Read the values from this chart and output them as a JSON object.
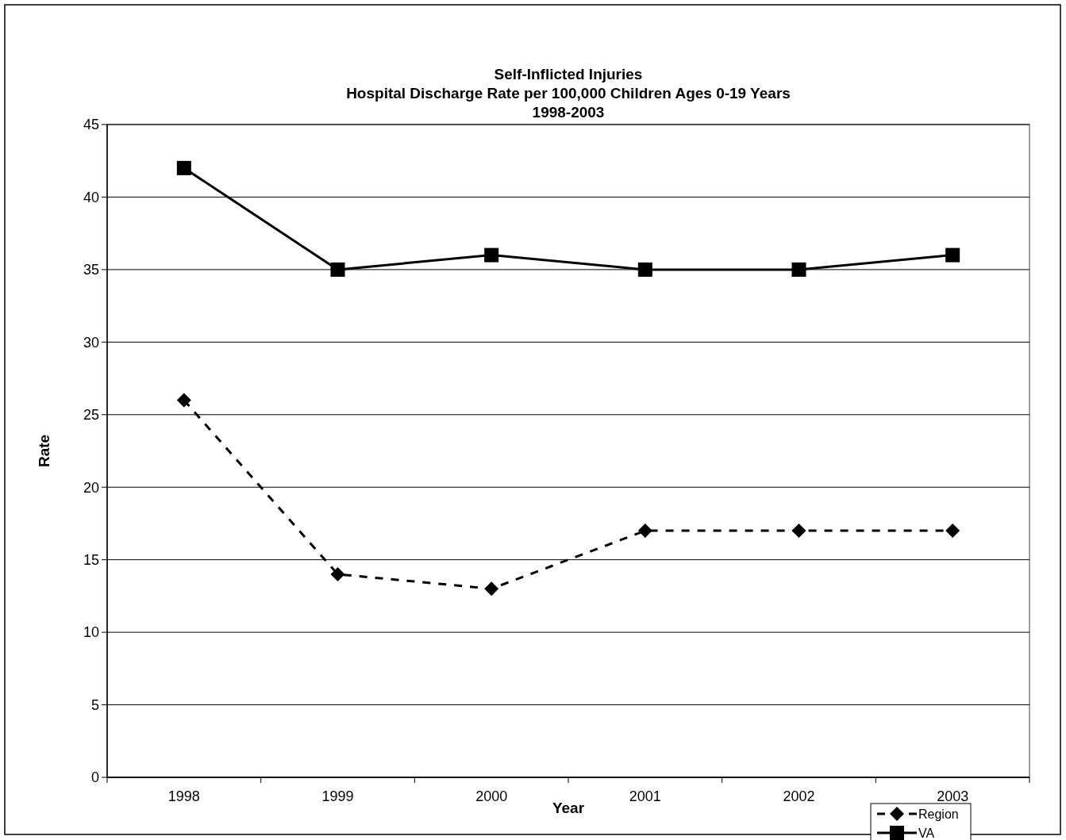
{
  "chart_data": {
    "type": "line",
    "title": "Self-Inflicted Injuries\nHospital Discharge Rate per 100,000 Children Ages 0-19 Years\n1998-2003",
    "xlabel": "Year",
    "ylabel": "Rate",
    "categories": [
      "1998",
      "1999",
      "2000",
      "2001",
      "2002",
      "2003"
    ],
    "series": [
      {
        "name": "Region",
        "color": "#000000",
        "values": [
          26,
          14,
          13,
          17,
          17,
          17
        ],
        "marker": "diamond",
        "line_style": "dashed"
      },
      {
        "name": "VA",
        "color": "#000000",
        "values": [
          42,
          35,
          36,
          35,
          35,
          36
        ],
        "marker": "square",
        "line_style": "solid"
      }
    ],
    "ylim": [
      0,
      45
    ],
    "yticks": [
      0,
      5,
      10,
      15,
      20,
      25,
      30,
      35,
      40,
      45
    ],
    "grid": "y",
    "legend": "bottom right"
  }
}
